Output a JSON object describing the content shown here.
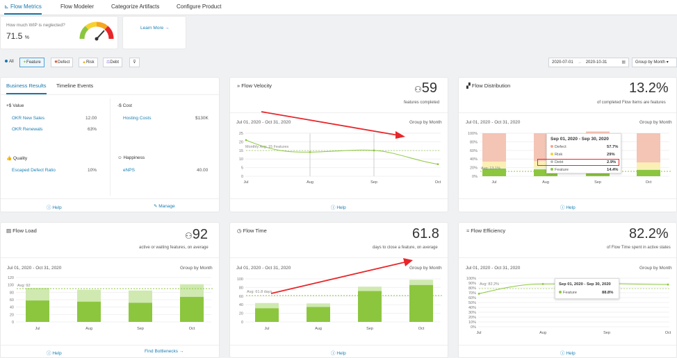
{
  "nav": {
    "tabs": [
      "Flow Metrics",
      "Flow Modeler",
      "Categorize Artifacts",
      "Configure Product"
    ]
  },
  "wip": {
    "question": "How much WIP is neglected?",
    "value": "71.5",
    "unit": "%",
    "learn_more": "Learn More →"
  },
  "filters": {
    "items": [
      "All",
      "Feature",
      "Defect",
      "Risk",
      "Debt"
    ],
    "date_from": "2020-07-01",
    "arrow": "→",
    "date_to": "2020-10-31",
    "group": "Group by Month",
    "group_arrow": "▾"
  },
  "business": {
    "tabs": [
      "Business Results",
      "Timeline Events"
    ],
    "value": {
      "title": "Value",
      "rows": [
        {
          "label": "OKR New Sales",
          "value": "12.00"
        },
        {
          "label": "OKR Renewals",
          "value": "63%"
        }
      ]
    },
    "cost": {
      "title": "Cost",
      "rows": [
        {
          "label": "Hosting Costs",
          "value": "$130K"
        }
      ]
    },
    "quality": {
      "title": "Quality",
      "rows": [
        {
          "label": "Escaped Defect Ratio",
          "value": "10%"
        }
      ]
    },
    "happiness": {
      "title": "Happiness",
      "rows": [
        {
          "label": "eNPS",
          "value": "40.00"
        }
      ]
    },
    "help": "Help",
    "manage": "Manage"
  },
  "common": {
    "date_range": "Jul 01, 2020 - Oct 31, 2020",
    "group": "Group by Month",
    "help": "Help"
  },
  "velocity": {
    "title": "Flow Velocity",
    "value": "59",
    "sub": "features completed",
    "avg": "Monthly Avg: 15 Features",
    "yticks": [
      "25",
      "20",
      "15",
      "10",
      "5",
      "0"
    ],
    "months": [
      "Jul",
      "Aug",
      "Sep",
      "Oct"
    ]
  },
  "distribution": {
    "title": "Flow Distribution",
    "value": "13.2%",
    "sub": "of completed Flow Items are features",
    "avg": "Avg: 13.1%",
    "yticks": [
      "100%",
      "80%",
      "60%",
      "40%",
      "20%",
      "0%"
    ],
    "months": [
      "Jul",
      "Aug",
      "Sep",
      "Oct"
    ],
    "tooltip": {
      "range": "Sep 01, 2020 - Sep 30, 2020",
      "rows": [
        {
          "name": "Defect",
          "value": "57.7%"
        },
        {
          "name": "Risk",
          "value": "29%"
        },
        {
          "name": "Debt",
          "value": "2.9%"
        },
        {
          "name": "Feature",
          "value": "14.4%"
        }
      ]
    }
  },
  "load": {
    "title": "Flow Load",
    "value": "92",
    "sub": "active or waiting features, on average",
    "avg": "Avg: 92",
    "yticks": [
      "120",
      "100",
      "80",
      "60",
      "40",
      "20",
      "0"
    ],
    "months": [
      "Jul",
      "Aug",
      "Sep",
      "Oct"
    ],
    "bottlenecks": "Find Bottlenecks →"
  },
  "time": {
    "title": "Flow Time",
    "value": "61.8",
    "sub": "days to close a feature, on average",
    "avg": "Avg: 61.8 days",
    "yticks": [
      "100",
      "80",
      "60",
      "40",
      "20",
      "0"
    ],
    "months": [
      "Jul",
      "Aug",
      "Sep",
      "Oct"
    ]
  },
  "efficiency": {
    "title": "Flow Efficiency",
    "value": "82.2%",
    "sub": "of Flow Time spent in active states",
    "avg": "Avg: 82.2%",
    "yticks": [
      "100%",
      "90%",
      "80%",
      "70%",
      "60%",
      "50%",
      "40%",
      "30%",
      "20%",
      "10%",
      "0%"
    ],
    "months": [
      "Jul",
      "Aug",
      "Sep",
      "Oct"
    ],
    "tooltip": {
      "range": "Sep 01, 2020 - Sep 30, 2020",
      "name": "Feature",
      "value": "88.8%"
    }
  },
  "colors": {
    "accent": "#1677ae",
    "green": "#8cc63f",
    "light_green": "#cfe9b1",
    "defect": "#f4c4b4",
    "risk": "#fcefb4",
    "red_arrow": "#e8262a"
  },
  "chart_data": [
    {
      "type": "line",
      "title": "Flow Velocity",
      "categories": [
        "Jul",
        "Aug",
        "Sep",
        "Oct"
      ],
      "values": [
        21,
        14,
        15,
        7
      ],
      "ylim": [
        0,
        25
      ]
    },
    {
      "type": "bar",
      "title": "Flow Distribution",
      "categories": [
        "Jul",
        "Aug",
        "Sep",
        "Oct"
      ],
      "series": [
        {
          "name": "Feature",
          "values": [
            18,
            16,
            14.4,
            15
          ]
        },
        {
          "name": "Debt",
          "values": [
            2,
            3,
            2.9,
            2
          ]
        },
        {
          "name": "Risk",
          "values": [
            14,
            16,
            29,
            15
          ]
        },
        {
          "name": "Defect",
          "values": [
            66,
            65,
            57.7,
            68
          ]
        }
      ],
      "ylim": [
        0,
        100
      ]
    },
    {
      "type": "bar",
      "title": "Flow Load",
      "categories": [
        "Jul",
        "Aug",
        "Sep",
        "Oct"
      ],
      "series": [
        {
          "name": "Active",
          "values": [
            58,
            55,
            52,
            68
          ]
        },
        {
          "name": "Waiting",
          "values": [
            34,
            32,
            33,
            34
          ]
        }
      ],
      "ylim": [
        0,
        120
      ]
    },
    {
      "type": "bar",
      "title": "Flow Time",
      "categories": [
        "Jul",
        "Aug",
        "Sep",
        "Oct"
      ],
      "series": [
        {
          "name": "Active",
          "values": [
            32,
            35,
            72,
            86
          ]
        },
        {
          "name": "Waiting",
          "values": [
            12,
            8,
            10,
            12
          ]
        }
      ],
      "ylim": [
        0,
        100
      ]
    },
    {
      "type": "line",
      "title": "Flow Efficiency",
      "categories": [
        "Jul",
        "Aug",
        "Sep",
        "Oct"
      ],
      "values": [
        68,
        88,
        88.8,
        87
      ],
      "ylim": [
        0,
        100
      ]
    }
  ]
}
